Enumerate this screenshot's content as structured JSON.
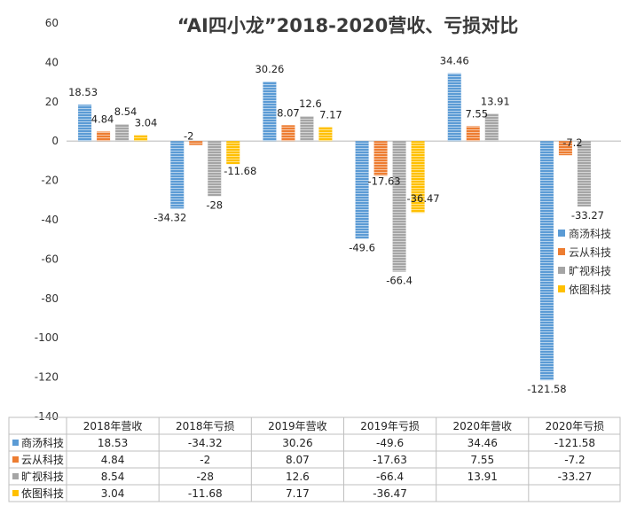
{
  "chart_data": {
    "type": "bar",
    "title": "“AI四小龙”2018-2020营收、亏损对比",
    "categories": [
      "2018年营收",
      "2018年亏损",
      "2019年营收",
      "2019年亏损",
      "2020年营收",
      "2020年亏损"
    ],
    "ylim": [
      -140,
      60
    ],
    "yticks": [
      60,
      40,
      20,
      0,
      -20,
      -40,
      -60,
      -80,
      -100,
      -120,
      -140
    ],
    "grid": false,
    "legend_position": "right",
    "series": [
      {
        "name": "商汤科技",
        "color": "#5b9bd5",
        "values": [
          18.53,
          -34.32,
          30.26,
          -49.6,
          34.46,
          -121.58
        ]
      },
      {
        "name": "云从科技",
        "color": "#ed7d31",
        "values": [
          4.84,
          -2,
          8.07,
          -17.63,
          7.55,
          -7.2
        ]
      },
      {
        "name": "旷视科技",
        "color": "#a5a5a5",
        "values": [
          8.54,
          -28,
          12.6,
          -66.4,
          13.91,
          -33.27
        ]
      },
      {
        "name": "依图科技",
        "color": "#ffc000",
        "values": [
          3.04,
          -11.68,
          7.17,
          -36.47,
          null,
          null
        ]
      }
    ],
    "data_table": true
  }
}
